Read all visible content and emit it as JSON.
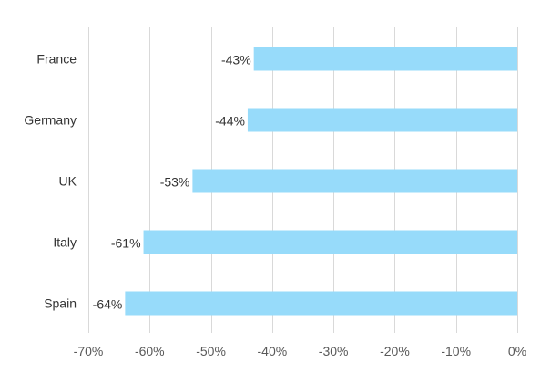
{
  "chart_data": {
    "type": "bar",
    "orientation": "horizontal",
    "categories": [
      "France",
      "Germany",
      "UK",
      "Italy",
      "Spain"
    ],
    "values": [
      -43,
      -44,
      -53,
      -61,
      -64
    ],
    "value_labels": [
      "-43%",
      "-44%",
      "-53%",
      "-61%",
      "-64%"
    ],
    "xlim": [
      -70,
      0
    ],
    "x_ticks": [
      -70,
      -60,
      -50,
      -40,
      -30,
      -20,
      -10,
      0
    ],
    "x_tick_labels": [
      "-70%",
      "-60%",
      "-50%",
      "-40%",
      "-30%",
      "-20%",
      "-10%",
      "0%"
    ],
    "grid": "vertical",
    "bar_color": "#97dbfa",
    "title": "",
    "xlabel": "",
    "ylabel": ""
  }
}
